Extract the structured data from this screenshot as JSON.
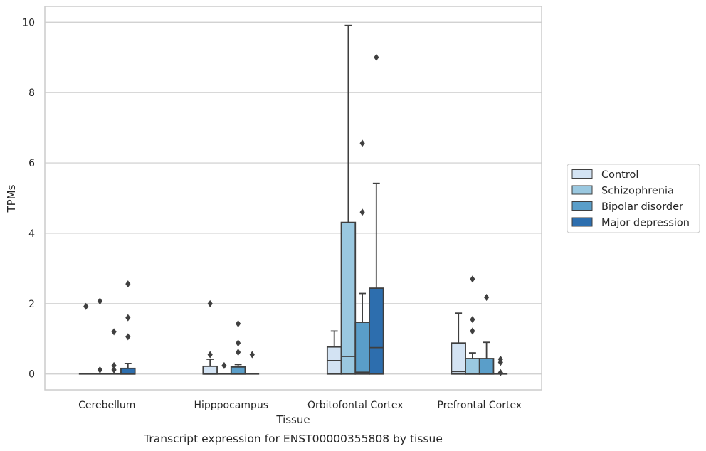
{
  "caption": "Transcript expression for ENST00000355808 by tissue",
  "chart_data": {
    "type": "box",
    "xlabel": "Tissue",
    "ylabel": "TPMs",
    "ylim": [
      -0.45,
      10.45
    ],
    "yticks": [
      0,
      2,
      4,
      6,
      8,
      10
    ],
    "grid": "horizontal",
    "legend_position": "right",
    "categories": [
      "Cerebellum",
      "Hipppocampus",
      "Orbitofontal Cortex",
      "Prefrontal Cortex"
    ],
    "series": [
      {
        "name": "Control",
        "color": "#d3e3f3",
        "boxes": [
          {
            "q1": 0,
            "median": 0,
            "q3": 0,
            "whisker_low": 0,
            "whisker_high": 0,
            "outliers": [
              1.92
            ]
          },
          {
            "q1": 0,
            "median": 0,
            "q3": 0.22,
            "whisker_low": 0,
            "whisker_high": 0.42,
            "outliers": [
              0.55,
              2.0
            ]
          },
          {
            "q1": 0,
            "median": 0.38,
            "q3": 0.77,
            "whisker_low": 0,
            "whisker_high": 1.22,
            "outliers": []
          },
          {
            "q1": 0,
            "median": 0.07,
            "q3": 0.88,
            "whisker_low": 0,
            "whisker_high": 1.73,
            "outliers": []
          }
        ]
      },
      {
        "name": "Schizophrenia",
        "color": "#9ac8e0",
        "boxes": [
          {
            "q1": 0,
            "median": 0,
            "q3": 0,
            "whisker_low": 0,
            "whisker_high": 0,
            "outliers": [
              0.12,
              2.07
            ]
          },
          {
            "q1": 0,
            "median": 0,
            "q3": 0,
            "whisker_low": 0,
            "whisker_high": 0,
            "outliers": [
              0.24
            ]
          },
          {
            "q1": 0,
            "median": 0.5,
            "q3": 4.31,
            "whisker_low": 0,
            "whisker_high": 9.91,
            "outliers": []
          },
          {
            "q1": 0,
            "median": 0,
            "q3": 0.44,
            "whisker_low": 0,
            "whisker_high": 0.6,
            "outliers": [
              1.22,
              1.55,
              2.7
            ]
          }
        ]
      },
      {
        "name": "Bipolar disorder",
        "color": "#5a9ec9",
        "boxes": [
          {
            "q1": 0,
            "median": 0,
            "q3": 0,
            "whisker_low": 0,
            "whisker_high": 0,
            "outliers": [
              0.12,
              0.24,
              1.2
            ]
          },
          {
            "q1": 0,
            "median": 0,
            "q3": 0.2,
            "whisker_low": 0,
            "whisker_high": 0.27,
            "outliers": [
              0.62,
              0.88,
              1.43
            ]
          },
          {
            "q1": 0,
            "median": 0.05,
            "q3": 1.47,
            "whisker_low": 0,
            "whisker_high": 2.29,
            "outliers": [
              4.6,
              6.56
            ]
          },
          {
            "q1": 0,
            "median": 0,
            "q3": 0.44,
            "whisker_low": 0,
            "whisker_high": 0.9,
            "outliers": [
              2.18
            ]
          }
        ]
      },
      {
        "name": "Major depression",
        "color": "#2d6eae",
        "boxes": [
          {
            "q1": 0,
            "median": 0,
            "q3": 0.16,
            "whisker_low": 0,
            "whisker_high": 0.3,
            "outliers": [
              1.06,
              1.6,
              2.56
            ]
          },
          {
            "q1": 0,
            "median": 0,
            "q3": 0,
            "whisker_low": 0,
            "whisker_high": 0,
            "outliers": [
              0.55
            ]
          },
          {
            "q1": 0,
            "median": 0.75,
            "q3": 2.44,
            "whisker_low": 0,
            "whisker_high": 5.42,
            "outliers": [
              9.0
            ]
          },
          {
            "q1": 0,
            "median": 0,
            "q3": 0,
            "whisker_low": 0,
            "whisker_high": 0,
            "outliers": [
              0.04,
              0.33,
              0.42
            ]
          }
        ]
      }
    ]
  }
}
